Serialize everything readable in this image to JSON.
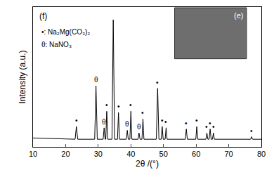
{
  "chart_data": {
    "type": "line",
    "xlabel": "2θ /(°)",
    "ylabel": "Intensity (a.u.)",
    "color": "#000000",
    "x": [
      10,
      22.9,
      23.3,
      23.7,
      28.9,
      29.3,
      29.7,
      31.5,
      31.8,
      32.1,
      32.3,
      32.6,
      32.9,
      34.2,
      34.6,
      35.0,
      35.9,
      36.2,
      36.5,
      38.6,
      38.9,
      39.2,
      39.7,
      40.0,
      40.3,
      42.2,
      42.5,
      42.8,
      43.4,
      43.7,
      44.0,
      47.8,
      48.2,
      48.6,
      49.3,
      49.6,
      49.9,
      50.5,
      50.8,
      51.1,
      56.7,
      57.0,
      57.3,
      59.9,
      60.2,
      60.5,
      63.0,
      63.3,
      63.6,
      64.0,
      64.3,
      64.6,
      65.0,
      65.3,
      65.6,
      76.7,
      77.0,
      77.3,
      80
    ],
    "values": [
      7,
      6,
      16,
      6,
      6,
      48,
      6,
      6,
      15,
      6,
      6,
      28,
      6,
      6,
      100,
      6,
      6,
      27,
      6,
      6,
      13,
      6,
      6,
      28,
      6,
      6,
      11,
      6,
      6,
      22,
      6,
      6,
      46,
      6,
      6,
      16,
      6,
      6,
      15,
      6,
      6,
      14,
      6,
      6,
      16,
      6,
      6,
      11,
      6,
      6,
      14,
      6,
      6,
      11,
      6,
      6,
      8,
      6,
      6
    ],
    "xlim": [
      10,
      80
    ],
    "xticks": [
      10,
      20,
      30,
      40,
      50,
      60,
      70,
      80
    ],
    "ylim": [
      0,
      110
    ],
    "tick_labels": "x",
    "annotations": [
      {
        "x": 23.3,
        "text": "•"
      },
      {
        "x": 29.3,
        "text": "θ"
      },
      {
        "x": 31.8,
        "text": "θ"
      },
      {
        "x": 32.6,
        "text": "•"
      },
      {
        "x": 36.2,
        "text": "•"
      },
      {
        "x": 38.9,
        "text": "θ"
      },
      {
        "x": 40.0,
        "text": "•"
      },
      {
        "x": 42.5,
        "text": "θ"
      },
      {
        "x": 43.7,
        "text": "•"
      },
      {
        "x": 48.2,
        "text": "•"
      },
      {
        "x": 49.6,
        "text": "•"
      },
      {
        "x": 50.8,
        "text": "•"
      },
      {
        "x": 57.0,
        "text": "•"
      },
      {
        "x": 60.2,
        "text": "•"
      },
      {
        "x": 63.3,
        "text": "•"
      },
      {
        "x": 64.3,
        "text": "•"
      },
      {
        "x": 65.3,
        "text": "•"
      },
      {
        "x": 77.0,
        "text": "•"
      }
    ],
    "key": [
      "•: Na₂Mg(CO₃)₂",
      "θ: NaNO₃"
    ],
    "panel_label": "(f)",
    "inset_label": "(e)"
  }
}
